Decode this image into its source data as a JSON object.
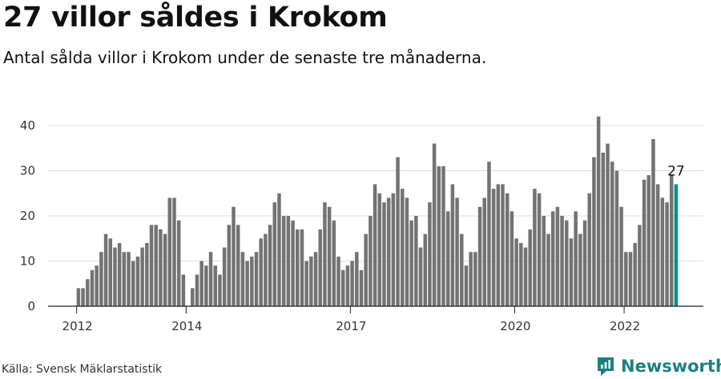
{
  "header": {
    "title": "27 villor såldes i Krokom",
    "subtitle": "Antal sålda villor i Krokom under de senaste tre månaderna."
  },
  "footer": {
    "source": "Källa: Svensk Mäklarstatistik",
    "brand": "Newsworthy"
  },
  "colors": {
    "bar": "#737373",
    "highlight": "#00918b",
    "brand": "#1d7f80",
    "grid": "#dddddd"
  },
  "chart_data": {
    "type": "bar",
    "title": "27 villor såldes i Krokom",
    "subtitle": "Antal sålda villor i Krokom under de senaste tre månaderna.",
    "xlabel": "",
    "ylabel": "",
    "ylim": [
      0,
      42
    ],
    "yticks": [
      0,
      10,
      20,
      30,
      40
    ],
    "xticks": [
      {
        "label": "2012",
        "index": 0
      },
      {
        "label": "2014",
        "index": 24
      },
      {
        "label": "2017",
        "index": 60
      },
      {
        "label": "2020",
        "index": 96
      },
      {
        "label": "2022",
        "index": 120
      }
    ],
    "grid": true,
    "legend": "none",
    "annotation": {
      "text": "27",
      "index": 131
    },
    "highlight_index": 131,
    "values": [
      4,
      4,
      6,
      8,
      9,
      12,
      16,
      15,
      13,
      14,
      12,
      12,
      10,
      11,
      13,
      14,
      18,
      18,
      17,
      16,
      24,
      24,
      19,
      7,
      0,
      4,
      7,
      10,
      9,
      12,
      9,
      7,
      13,
      18,
      22,
      18,
      12,
      10,
      11,
      12,
      15,
      16,
      18,
      23,
      25,
      20,
      20,
      19,
      17,
      17,
      10,
      11,
      12,
      17,
      23,
      22,
      19,
      11,
      8,
      9,
      10,
      12,
      8,
      16,
      20,
      27,
      25,
      23,
      24,
      25,
      33,
      26,
      24,
      19,
      20,
      13,
      16,
      23,
      36,
      31,
      31,
      21,
      27,
      24,
      16,
      9,
      12,
      12,
      22,
      24,
      32,
      26,
      27,
      27,
      25,
      21,
      15,
      14,
      13,
      17,
      26,
      25,
      20,
      16,
      21,
      22,
      20,
      19,
      15,
      21,
      16,
      19,
      25,
      33,
      42,
      34,
      36,
      32,
      30,
      22,
      12,
      12,
      14,
      18,
      28,
      29,
      37,
      27,
      24,
      23,
      29,
      27
    ]
  }
}
